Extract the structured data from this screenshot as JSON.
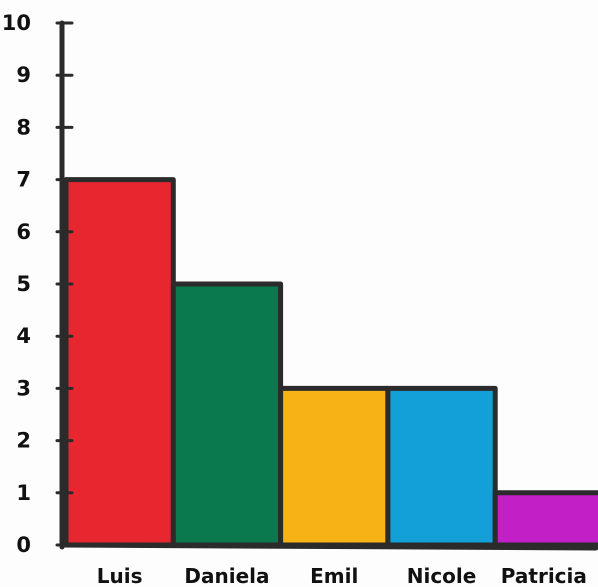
{
  "chart_data": {
    "type": "bar",
    "title": "",
    "xlabel": "",
    "ylabel": "",
    "categories": [
      "Luis",
      "Daniela",
      "Emil",
      "Nicole",
      "Patricia"
    ],
    "values": [
      7,
      5,
      3,
      3,
      1
    ],
    "colors": [
      "#e8262f",
      "#0a7a4e",
      "#f7b215",
      "#139fd8",
      "#c21fc6"
    ],
    "ylim": [
      0,
      10
    ],
    "yticks": [
      "0",
      "1",
      "2",
      "3",
      "4",
      "5",
      "6",
      "7",
      "8",
      "9",
      "10"
    ],
    "grid": false,
    "style": "hand-drawn marker on paper"
  }
}
